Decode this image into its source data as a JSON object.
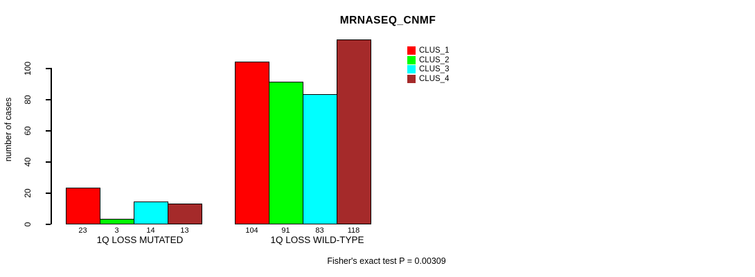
{
  "chart": {
    "title": "MRNASEQ_CNMF",
    "ylabel": "number of cases",
    "footer": "Fisher's exact test P = 0.00309"
  },
  "chart_data": {
    "type": "bar",
    "title": "MRNASEQ_CNMF",
    "xlabel": "",
    "ylabel": "number of cases",
    "categories": [
      "1Q LOSS MUTATED",
      "1Q LOSS WILD-TYPE"
    ],
    "series": [
      {
        "name": "CLUS_1",
        "color": "#FF0000",
        "values": [
          23,
          104
        ]
      },
      {
        "name": "CLUS_2",
        "color": "#00FF00",
        "values": [
          3,
          91
        ]
      },
      {
        "name": "CLUS_3",
        "color": "#00FFFF",
        "values": [
          14,
          83
        ]
      },
      {
        "name": "CLUS_4",
        "color": "#A52A2A",
        "values": [
          13,
          118
        ]
      }
    ],
    "bar_value_labels": [
      [
        23,
        3,
        14,
        13
      ],
      [
        104,
        91,
        83,
        118
      ]
    ],
    "y_ticks": [
      0,
      20,
      40,
      60,
      80,
      100
    ],
    "ylim": [
      0,
      120
    ],
    "grid": false,
    "legend_position": "top-right",
    "legend_entries": [
      "CLUS_1",
      "CLUS_2",
      "CLUS_3",
      "CLUS_4"
    ],
    "annotation": "Fisher's exact test P = 0.00309"
  }
}
